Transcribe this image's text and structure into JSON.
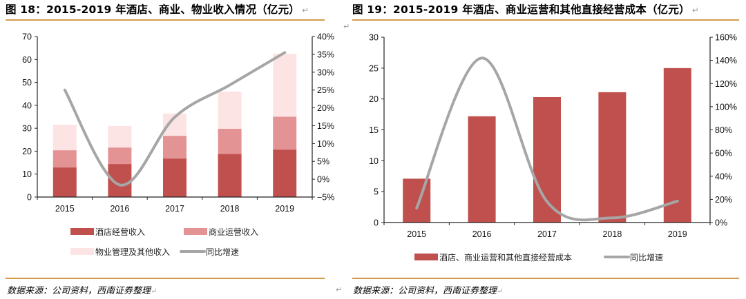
{
  "left_figure": {
    "title": "图 18：2015-2019 年酒店、商业、物业收入情况（亿元）",
    "source": "数据来源：公司资料，西南证券整理"
  },
  "right_figure": {
    "title": "图 19：2015-2019 年酒店、商业运营和其他直接经营成本（亿元）",
    "source": "数据来源：公司资料，西南证券整理"
  },
  "return_mark": "↵",
  "chart_data": [
    {
      "type": "bar",
      "stacked": true,
      "title": "2015-2019 年酒店、商业、物业收入情况（亿元）",
      "categories": [
        "2015",
        "2016",
        "2017",
        "2018",
        "2019"
      ],
      "series": [
        {
          "name": "酒店经营收入",
          "axis": "left",
          "color": "#c0504d",
          "values": [
            12.9,
            14.4,
            16.8,
            18.8,
            20.7
          ]
        },
        {
          "name": "商业运营收入",
          "axis": "left",
          "color": "#e49395",
          "values": [
            7.5,
            7.2,
            9.9,
            11.0,
            14.3
          ]
        },
        {
          "name": "物业管理及其他收入",
          "axis": "left",
          "color": "#fde4e4",
          "values": [
            11.1,
            9.4,
            9.7,
            16.2,
            27.5
          ]
        },
        {
          "name": "同比增速",
          "type": "line",
          "axis": "right",
          "color": "#a6a6a6",
          "values": [
            25.0,
            -1.6,
            17.4,
            26.4,
            35.5
          ]
        }
      ],
      "y_left": {
        "min": 0,
        "max": 70,
        "step": 10,
        "ticks": [
          "0",
          "10",
          "20",
          "30",
          "40",
          "50",
          "60",
          "70"
        ]
      },
      "y_right": {
        "min": -5,
        "max": 40,
        "step": 5,
        "ticks": [
          "-5%",
          "0%",
          "5%",
          "10%",
          "15%",
          "20%",
          "25%",
          "30%",
          "35%",
          "40%"
        ]
      },
      "legend": {
        "placement": "bottom",
        "rows": [
          [
            "酒店经营收入",
            "商业运营收入"
          ],
          [
            "物业管理及其他收入",
            "同比增速"
          ]
        ]
      },
      "grid": false
    },
    {
      "type": "bar",
      "stacked": false,
      "title": "2015-2019 年酒店、商业运营和其他直接经营成本（亿元）",
      "categories": [
        "2015",
        "2016",
        "2017",
        "2018",
        "2019"
      ],
      "series": [
        {
          "name": "酒店、商业运营和其他直接经营成本",
          "axis": "left",
          "color": "#c0504d",
          "values": [
            7.1,
            17.2,
            20.3,
            21.1,
            25.0
          ]
        },
        {
          "name": "同比增速",
          "type": "line",
          "axis": "right",
          "color": "#a6a6a6",
          "values": [
            12.5,
            142.0,
            18.0,
            4.0,
            18.5
          ]
        }
      ],
      "y_left": {
        "min": 0,
        "max": 30,
        "step": 5,
        "ticks": [
          "0",
          "5",
          "10",
          "15",
          "20",
          "25",
          "30"
        ]
      },
      "y_right": {
        "min": 0,
        "max": 160,
        "step": 20,
        "ticks": [
          "0%",
          "20%",
          "40%",
          "60%",
          "80%",
          "100%",
          "120%",
          "140%",
          "160%"
        ]
      },
      "legend": {
        "placement": "bottom",
        "rows": [
          [
            "酒店、商业运营和其他直接经营成本",
            "同比增速"
          ]
        ]
      },
      "grid": false
    }
  ]
}
